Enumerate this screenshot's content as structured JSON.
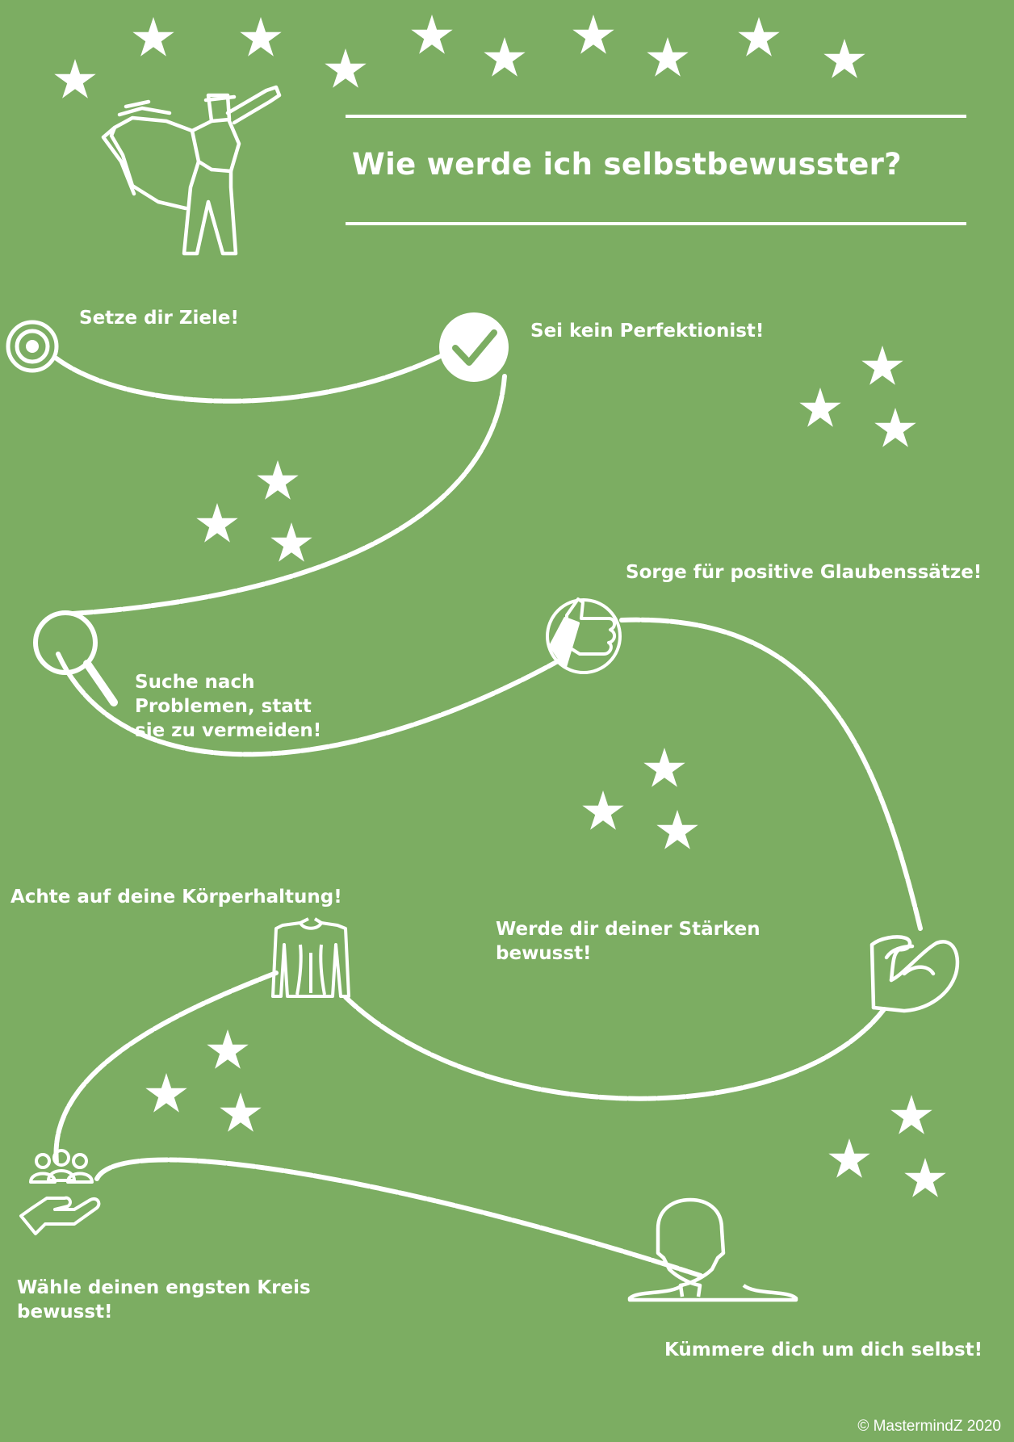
{
  "title": "Wie werde ich selbstbewusster?",
  "steps": {
    "goals": "Setze dir Ziele!",
    "perfectionist": "Sei kein Perfektionist!",
    "beliefs": "Sorge für positive Glaubenssätze!",
    "problems": "Suche nach Problemen, statt sie zu vermeiden!",
    "posture": "Achte auf deine Körperhaltung!",
    "strengths": "Werde dir deiner Stärken bewusst!",
    "circle": "Wähle deinen engsten Kreis bewusst!",
    "selfcare": "Kümmere dich um dich selbst!"
  },
  "copyright": "© MastermindZ 2020",
  "colors": {
    "background": "#7cad62",
    "foreground": "#ffffff"
  },
  "icons": [
    "star-icon",
    "superhero-icon",
    "target-icon",
    "checkmark-icon",
    "magnifier-icon",
    "thumbs-up-icon",
    "torso-icon",
    "biceps-icon",
    "group-hand-icon",
    "head-silhouette-icon"
  ]
}
